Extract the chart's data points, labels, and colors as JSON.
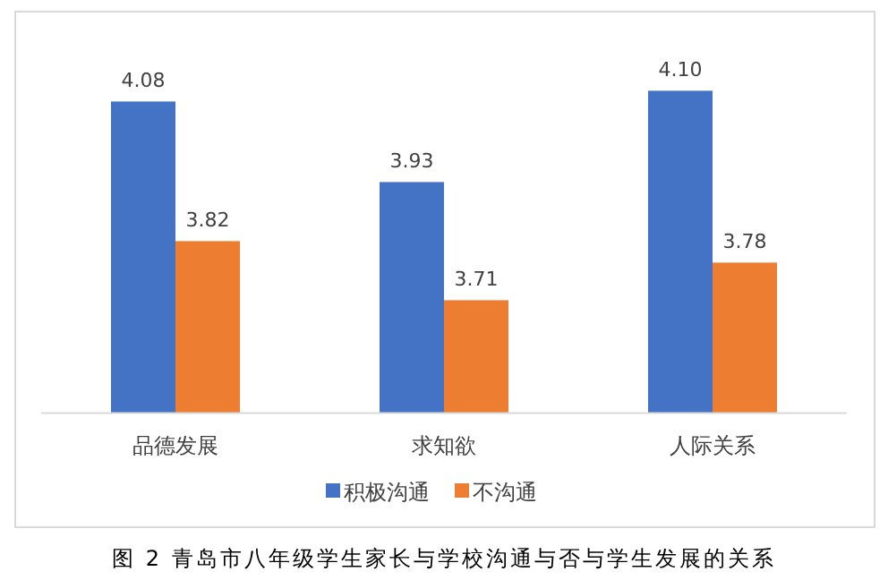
{
  "chart_data": {
    "type": "bar",
    "title": "图 2 青岛市八年级学生家长与学校沟通与否与学生发展的关系",
    "categories": [
      "品德发展",
      "求知欲",
      "人际关系"
    ],
    "series": [
      {
        "name": "积极沟通",
        "color": "#4472c4",
        "values": [
          4.08,
          3.93,
          4.1
        ],
        "value_labels": [
          "4.08",
          "3.93",
          "4.10"
        ]
      },
      {
        "name": "不沟通",
        "color": "#ed7d31",
        "values": [
          3.82,
          3.71,
          3.78
        ],
        "value_labels": [
          "3.82",
          "3.71",
          "3.78"
        ]
      }
    ],
    "ylim": [
      3.5,
      4.1
    ],
    "legend": "bottom",
    "tick_labels": "x"
  }
}
